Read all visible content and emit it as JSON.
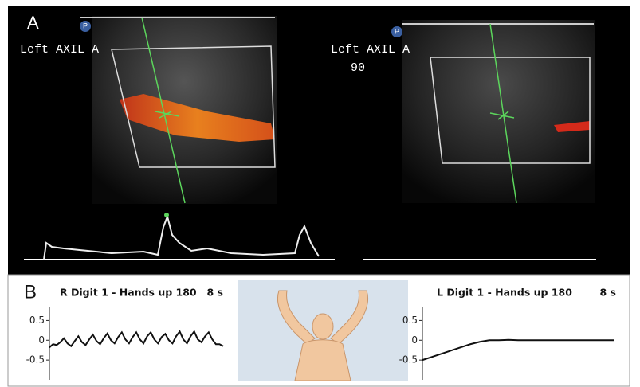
{
  "panel_a": {
    "label": "A",
    "left_image": {
      "marker": "P",
      "label": "Left AXIL A"
    },
    "right_image": {
      "marker": "P",
      "label": "Left AXIL A",
      "angle": "90"
    }
  },
  "panel_b": {
    "label": "B",
    "left_chart": {
      "type": "line",
      "title": "R Digit 1 - Hands up 180",
      "duration": "8 s",
      "color": "#111111",
      "ylim": [
        -1,
        0.85
      ],
      "yticks": [
        0.5,
        0,
        -0.5
      ],
      "values": [
        -0.18,
        -0.1,
        -0.12,
        -0.05,
        0.05,
        -0.08,
        -0.15,
        -0.02,
        0.1,
        -0.05,
        -0.12,
        0.02,
        0.14,
        -0.02,
        -0.1,
        0.05,
        0.17,
        0,
        -0.08,
        0.08,
        0.2,
        0.02,
        -0.08,
        0.08,
        0.2,
        0.02,
        -0.08,
        0.1,
        0.2,
        0.02,
        -0.08,
        0.08,
        0.16,
        0,
        -0.08,
        0.1,
        0.22,
        0.02,
        -0.08,
        0.1,
        0.22,
        0.02,
        -0.05,
        0.1,
        0.2,
        0.02,
        -0.1,
        -0.1,
        -0.15
      ]
    },
    "right_chart": {
      "type": "line",
      "title": "L Digit 1 - Hands up 180",
      "duration": "8 s",
      "color": "#111111",
      "ylim": [
        -1,
        0.85
      ],
      "yticks": [
        0.5,
        0,
        -0.5
      ],
      "values": [
        -0.5,
        -0.42,
        -0.34,
        -0.26,
        -0.18,
        -0.1,
        -0.04,
        0,
        0,
        0.01,
        0,
        0,
        0,
        0,
        0,
        0,
        0,
        0,
        0,
        0,
        0
      ]
    }
  }
}
